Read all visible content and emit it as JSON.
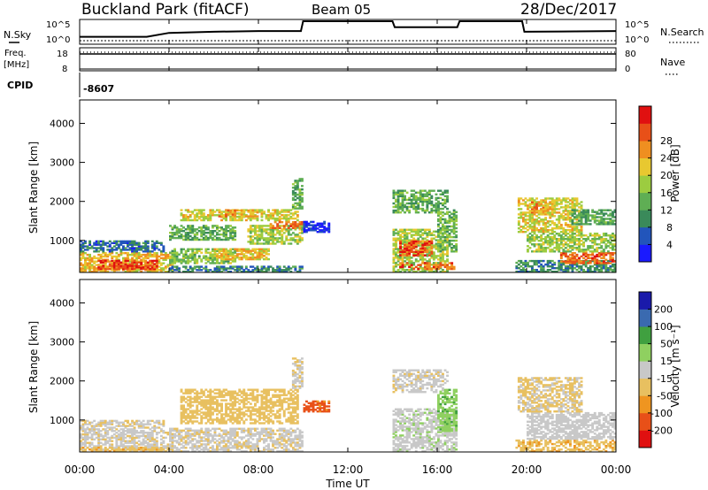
{
  "header": {
    "station": "Buckland Park (fitACF)",
    "beam": "Beam 05",
    "date": "28/Dec/2017"
  },
  "left_labels": {
    "nsky": "N.Sky",
    "freq_line1": "Freq.",
    "freq_line2": "[MHz]",
    "cpid": "CPID"
  },
  "right_labels": {
    "nsearch": "N.Search",
    "nave": "Nave"
  },
  "noise_axis": {
    "top": "10^5",
    "bottom": "10^0"
  },
  "freq_axis": {
    "top": "18",
    "bottom": "8"
  },
  "nave_axis": {
    "top": "80",
    "bottom": "0"
  },
  "cpid_value": "-8607",
  "power_panel": {
    "ylabel": "Slant Range [km]",
    "yticks": [
      "1000",
      "2000",
      "3000",
      "4000"
    ],
    "colorbar_label": "Power [dB]",
    "colorbar_ticks": [
      "4",
      "8",
      "12",
      "16",
      "20",
      "24",
      "28"
    ]
  },
  "velocity_panel": {
    "ylabel": "Slant Range [km]",
    "yticks": [
      "1000",
      "2000",
      "3000",
      "4000"
    ],
    "colorbar_label": "Velocity [m s⁻¹]",
    "colorbar_ticks": [
      "-200",
      "-100",
      "-50",
      "-15",
      "15",
      "50",
      "100",
      "200"
    ]
  },
  "x_axis": {
    "label": "Time UT",
    "ticks": [
      "00:00",
      "04:00",
      "08:00",
      "12:00",
      "16:00",
      "20:00",
      "00:00"
    ]
  },
  "colors": {
    "power_scale": [
      "#1a1aff",
      "#2255bb",
      "#3a8a5a",
      "#5fae54",
      "#9ccc40",
      "#e8c830",
      "#ef8f20",
      "#e85018",
      "#e01010"
    ],
    "velocity_scale": [
      "#e01010",
      "#e85018",
      "#ef9520",
      "#e8c060",
      "#c8c8c8",
      "#8fd060",
      "#40a040",
      "#3a6ab0",
      "#1a1aaa"
    ]
  },
  "chart_data": [
    {
      "type": "heatmap",
      "title": "Power [dB]",
      "xlabel": "Time UT",
      "ylabel": "Slant Range [km]",
      "xlim": [
        "00:00",
        "24:00"
      ],
      "ylim": [
        180,
        4600
      ],
      "color_range": [
        0,
        30
      ],
      "regions": [
        {
          "t": [
            0,
            4.2
          ],
          "r": [
            180,
            700
          ],
          "db": 22
        },
        {
          "t": [
            0.8,
            3.5
          ],
          "r": [
            250,
            500
          ],
          "db": 29
        },
        {
          "t": [
            0,
            3.8
          ],
          "r": [
            700,
            1000
          ],
          "db": 9
        },
        {
          "t": [
            4,
            10
          ],
          "r": [
            180,
            350
          ],
          "db": 10
        },
        {
          "t": [
            4,
            7
          ],
          "r": [
            400,
            800
          ],
          "db": 16
        },
        {
          "t": [
            6,
            8.5
          ],
          "r": [
            500,
            800
          ],
          "db": 22
        },
        {
          "t": [
            7.5,
            10
          ],
          "r": [
            900,
            1400
          ],
          "db": 18
        },
        {
          "t": [
            8.5,
            10
          ],
          "r": [
            1300,
            1500
          ],
          "db": 27
        },
        {
          "t": [
            4,
            7
          ],
          "r": [
            1000,
            1400
          ],
          "db": 14
        },
        {
          "t": [
            4.5,
            9.8
          ],
          "r": [
            1500,
            1800
          ],
          "db": 20
        },
        {
          "t": [
            6.2,
            8
          ],
          "r": [
            1600,
            1800
          ],
          "db": 24
        },
        {
          "t": [
            9.5,
            10
          ],
          "r": [
            1800,
            2600
          ],
          "db": 14
        },
        {
          "t": [
            10,
            11.2
          ],
          "r": [
            1200,
            1500
          ],
          "db": 5
        },
        {
          "t": [
            14,
            16.5
          ],
          "r": [
            180,
            1300
          ],
          "db": 18
        },
        {
          "t": [
            14.3,
            15.8
          ],
          "r": [
            600,
            1000
          ],
          "db": 28
        },
        {
          "t": [
            14.3,
            16.8
          ],
          "r": [
            250,
            450
          ],
          "db": 27
        },
        {
          "t": [
            14,
            16.5
          ],
          "r": [
            1700,
            2300
          ],
          "db": 14
        },
        {
          "t": [
            16,
            16.9
          ],
          "r": [
            700,
            1800
          ],
          "db": 15
        },
        {
          "t": [
            19.5,
            24
          ],
          "r": [
            180,
            500
          ],
          "db": 11
        },
        {
          "t": [
            21.5,
            24
          ],
          "r": [
            400,
            700
          ],
          "db": 27
        },
        {
          "t": [
            20,
            24
          ],
          "r": [
            700,
            1200
          ],
          "db": 17
        },
        {
          "t": [
            19.6,
            22.5
          ],
          "r": [
            1200,
            2100
          ],
          "db": 20
        },
        {
          "t": [
            20.2,
            21.2
          ],
          "r": [
            1700,
            2000
          ],
          "db": 24
        },
        {
          "t": [
            22,
            24
          ],
          "r": [
            1400,
            1800
          ],
          "db": 13
        }
      ]
    },
    {
      "type": "heatmap",
      "title": "Velocity [m s-1]",
      "xlabel": "Time UT",
      "ylabel": "Slant Range [km]",
      "xlim": [
        "00:00",
        "24:00"
      ],
      "ylim": [
        180,
        4600
      ],
      "color_range": [
        -250,
        250
      ],
      "regions": [
        {
          "t": [
            0,
            4.2
          ],
          "r": [
            180,
            700
          ],
          "v": -5
        },
        {
          "t": [
            0,
            4.2
          ],
          "r": [
            180,
            320
          ],
          "v": -40
        },
        {
          "t": [
            0,
            3.8
          ],
          "r": [
            700,
            1000
          ],
          "v": -10
        },
        {
          "t": [
            4,
            10
          ],
          "r": [
            180,
            800
          ],
          "v": -8
        },
        {
          "t": [
            4.5,
            9.8
          ],
          "r": [
            900,
            1800
          ],
          "v": -30
        },
        {
          "t": [
            9.5,
            10
          ],
          "r": [
            1800,
            2600
          ],
          "v": -10
        },
        {
          "t": [
            10,
            11.2
          ],
          "r": [
            1200,
            1500
          ],
          "v": -110
        },
        {
          "t": [
            14,
            16.9
          ],
          "r": [
            180,
            1300
          ],
          "v": 5
        },
        {
          "t": [
            14,
            16.5
          ],
          "r": [
            1700,
            2300
          ],
          "v": -5
        },
        {
          "t": [
            16,
            16.9
          ],
          "r": [
            700,
            1800
          ],
          "v": 40
        },
        {
          "t": [
            19.5,
            24
          ],
          "r": [
            180,
            500
          ],
          "v": -40
        },
        {
          "t": [
            20,
            24
          ],
          "r": [
            500,
            1200
          ],
          "v": 0
        },
        {
          "t": [
            19.6,
            22.5
          ],
          "r": [
            1200,
            2100
          ],
          "v": -20
        }
      ]
    },
    {
      "type": "line",
      "title": "N.Sky",
      "ylim": [
        1,
        100000
      ],
      "series": [
        {
          "x": [
            0,
            3,
            4,
            6,
            8,
            9.9,
            10,
            14,
            14.1,
            16.9,
            17,
            19.8,
            19.9,
            24
          ],
          "y": [
            10,
            10,
            100,
            200,
            300,
            300,
            100000,
            100000,
            3000,
            3000,
            100000,
            100000,
            200,
            300
          ]
        }
      ]
    }
  ]
}
